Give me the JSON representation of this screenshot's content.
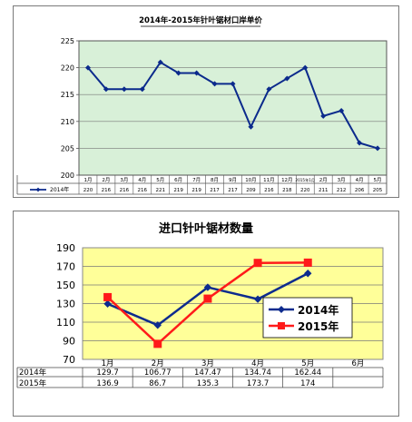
{
  "chart_data": [
    {
      "type": "line",
      "title": "2014年-2015年针叶锯材口岸单价",
      "categories": [
        "1月",
        "2月",
        "3月",
        "4月",
        "5月",
        "6月",
        "7月",
        "8月",
        "9月",
        "10月",
        "11月",
        "12月",
        "2015年1月",
        "2月",
        "3月",
        "4月",
        "5月"
      ],
      "category_labels": [
        "1月",
        "2月",
        "3月",
        "4月",
        "5月",
        "6月",
        "7月",
        "8月",
        "9月",
        "10月",
        "11月",
        "12月",
        "2015年1月",
        "2月",
        "3月",
        "4月",
        "5月"
      ],
      "series": [
        {
          "name": "2014年",
          "values": [
            220,
            216,
            216,
            216,
            221,
            219,
            219,
            217,
            217,
            209,
            216,
            218,
            220,
            211,
            212,
            206,
            205
          ],
          "color": "#0b2a8c"
        }
      ],
      "table_values": [
        "220",
        "216",
        "216",
        "216",
        "221",
        "219",
        "219",
        "217",
        "217",
        "209",
        "216",
        "218",
        "220",
        "211",
        "212",
        "206",
        "205"
      ],
      "yticks": [
        200,
        205,
        210,
        215,
        220,
        225
      ],
      "ylim": [
        200,
        225
      ],
      "grid": true,
      "plot_background": "#d8f0d8",
      "legend": "table"
    },
    {
      "type": "line",
      "title": "进口针叶锯材数量",
      "categories": [
        "1月",
        "2月",
        "3月",
        "4月",
        "5月",
        "6月"
      ],
      "series": [
        {
          "name": "2014年",
          "values": [
            129.7,
            106.77,
            147.47,
            134.74,
            162.44,
            null
          ],
          "labels": [
            "129.7",
            "106.77",
            "147.47",
            "134.74",
            "162.44",
            ""
          ],
          "color": "#0d2b8e"
        },
        {
          "name": "2015年",
          "values": [
            136.9,
            86.7,
            135.3,
            173.7,
            174,
            null
          ],
          "labels": [
            "136.9",
            "86.7",
            "135.3",
            "173.7",
            "174",
            ""
          ],
          "color": "#ff1a1a"
        }
      ],
      "yticks": [
        70,
        90,
        110,
        130,
        150,
        170,
        190
      ],
      "ylim": [
        70,
        190
      ],
      "grid": true,
      "plot_background": "#ffff99",
      "legend": "right"
    }
  ]
}
